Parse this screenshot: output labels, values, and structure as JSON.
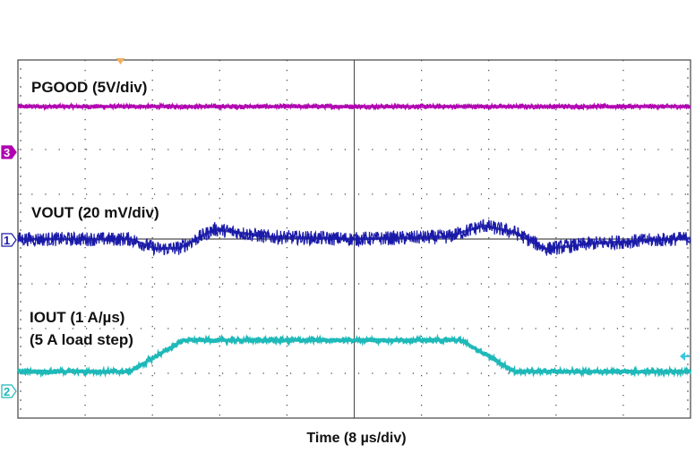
{
  "chart_data": {
    "type": "line",
    "title": "",
    "xlabel": "Time (8 µs/div)",
    "ylabel": "",
    "xlim": [
      0,
      80
    ],
    "ylim_divisions": [
      0,
      8
    ],
    "x_divisions": 10,
    "y_divisions": 8,
    "grid": true,
    "x_unit": "µs",
    "series": [
      {
        "name": "PGOOD",
        "label": "PGOOD (5V/div)",
        "channel": "3",
        "color": "#b000b0",
        "points": [
          [
            0,
            6.96
          ],
          [
            80,
            6.96
          ]
        ],
        "noise": 0.06
      },
      {
        "name": "VOUT",
        "label": "VOUT (20 mV/div)",
        "channel": "1",
        "color": "#1a1aa8",
        "points": [
          [
            0,
            4.0
          ],
          [
            13.3,
            4.0
          ],
          [
            16.5,
            3.78
          ],
          [
            19.2,
            3.8
          ],
          [
            23.4,
            4.22
          ],
          [
            29.8,
            4.05
          ],
          [
            40,
            4.0
          ],
          [
            51.1,
            4.05
          ],
          [
            55.4,
            4.3
          ],
          [
            59.1,
            4.15
          ],
          [
            62.8,
            3.78
          ],
          [
            68.2,
            3.9
          ],
          [
            80,
            4.02
          ]
        ],
        "noise": 0.16,
        "reference_level": 4.0
      },
      {
        "name": "IOUT",
        "label_lines": [
          "IOUT (1 A/µs)",
          "(5 A load step)"
        ],
        "channel": "2",
        "color": "#1fb8b8",
        "points": [
          [
            0,
            1.04
          ],
          [
            13.3,
            1.04
          ],
          [
            19.7,
            1.74
          ],
          [
            52.7,
            1.74
          ],
          [
            59.1,
            1.04
          ],
          [
            80,
            1.04
          ]
        ],
        "noise": 0.05
      }
    ],
    "channel_markers": [
      {
        "channel": "3",
        "level_div": 5.94,
        "color": "#b000b0"
      },
      {
        "channel": "1",
        "level_div": 3.98,
        "color": "#1a1aa8"
      },
      {
        "channel": "2",
        "level_div": 0.6,
        "color": "#1fb8b8"
      }
    ],
    "trigger_time": 12.2,
    "trigger_level_div": 1.38,
    "colors": {
      "grid": "#444444",
      "trigger": "#f0b060"
    }
  }
}
